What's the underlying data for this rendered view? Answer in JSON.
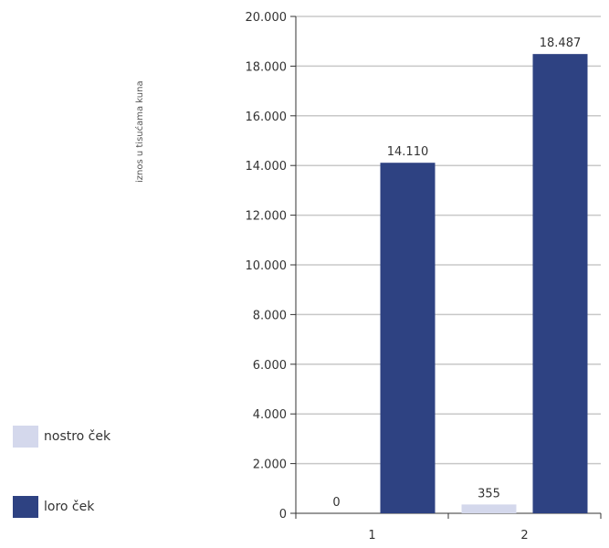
{
  "chart_data": {
    "type": "bar",
    "title": "",
    "xlabel": "",
    "ylabel": "iznos u tisućama kuna",
    "categories": [
      "1",
      "2"
    ],
    "series": [
      {
        "name": "nostro ček",
        "values": [
          0,
          355
        ],
        "color": "#d4d8ec"
      },
      {
        "name": "loro ček",
        "values": [
          14110,
          18487
        ],
        "color": "#2e4282"
      }
    ],
    "ylim": [
      0,
      20000
    ],
    "yticks": [
      0,
      2000,
      4000,
      6000,
      8000,
      10000,
      12000,
      14000,
      16000,
      18000,
      20000
    ],
    "ytick_labels": [
      "0",
      "2.000",
      "4.000",
      "6.000",
      "8.000",
      "10.000",
      "12.000",
      "14.000",
      "16.000",
      "18.000",
      "20.000"
    ],
    "data_labels": [
      [
        "0",
        "355"
      ],
      [
        "14.110",
        "18.487"
      ]
    ],
    "grid": true,
    "legend_position": "bottom-left"
  },
  "colors": {
    "axis": "#333333",
    "grid": "#c8c8c8"
  }
}
